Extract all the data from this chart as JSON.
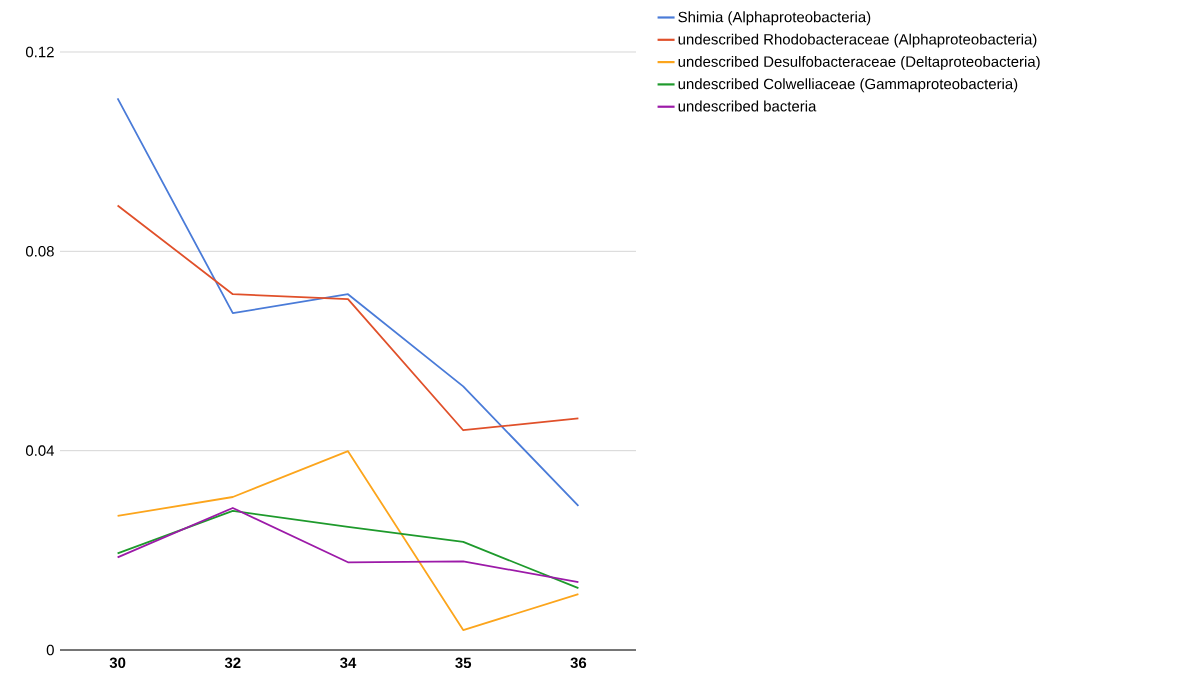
{
  "chart_data": {
    "type": "line",
    "categories": [
      "30",
      "32",
      "34",
      "35",
      "36"
    ],
    "series": [
      {
        "name": "Shimia (Alphaproteobacteria)",
        "color": "#4a7bd8",
        "values": [
          0.1107,
          0.0676,
          0.0714,
          0.0529,
          0.0289
        ]
      },
      {
        "name": "undescribed Rhodobacteraceae (Alphaproteobacteria)",
        "color": "#e0502a",
        "values": [
          0.0892,
          0.0714,
          0.0704,
          0.0441,
          0.0465
        ]
      },
      {
        "name": "undescribed Desulfobacteraceae (Deltaproteobacteria)",
        "color": "#fca51c",
        "values": [
          0.0269,
          0.0307,
          0.0399,
          0.004,
          0.0112
        ]
      },
      {
        "name": "undescribed Colwelliaceae (Gammaproteobacteria)",
        "color": "#1e9a2c",
        "values": [
          0.0194,
          0.0279,
          0.0247,
          0.0217,
          0.0124
        ]
      },
      {
        "name": "undescribed bacteria",
        "color": "#9c1aa8",
        "values": [
          0.0186,
          0.0285,
          0.0176,
          0.0178,
          0.0136
        ]
      }
    ],
    "ylim": [
      0,
      0.12
    ],
    "yticks": [
      0,
      0.04,
      0.08,
      0.12
    ],
    "grid": "y",
    "legend": "top right"
  }
}
